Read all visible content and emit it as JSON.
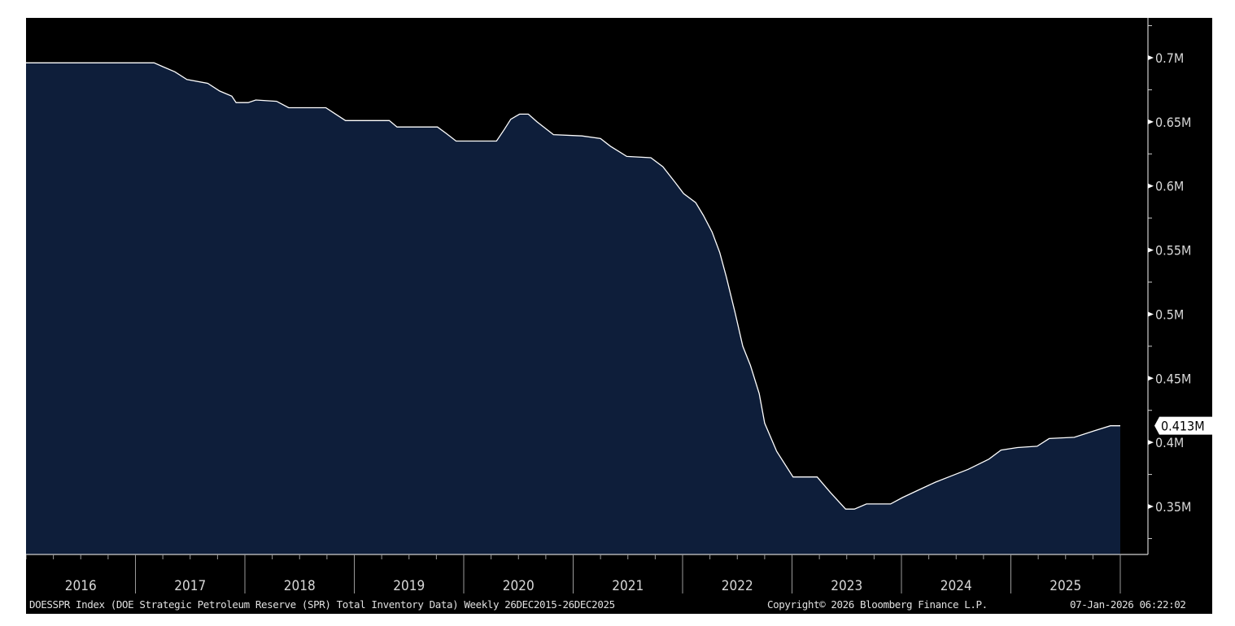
{
  "chart_data": {
    "type": "area",
    "title": "DOESSPR Index (DOE Strategic Petroleum Reserve (SPR) Total Inventory Data) Weekly 26DEC2015-26DEC2025",
    "xlabel": "",
    "ylabel": "",
    "x_tick_labels": [
      "2016",
      "2017",
      "2018",
      "2019",
      "2020",
      "2021",
      "2022",
      "2023",
      "2024",
      "2025"
    ],
    "y_tick_labels": [
      "0.7M",
      "0.65M",
      "0.6M",
      "0.55M",
      "0.5M",
      "0.45M",
      "0.4M",
      "0.35M"
    ],
    "y_ticks": [
      0.7,
      0.65,
      0.6,
      0.55,
      0.5,
      0.45,
      0.4,
      0.35
    ],
    "xlim": [
      2016.0,
      2026.25
    ],
    "ylim": [
      0.3125,
      0.731
    ],
    "grid": false,
    "last_value_label": "0.413M",
    "last_value": 0.413,
    "series": [
      {
        "name": "DOESSPR Index",
        "color": "#ffffff",
        "fill": "#0e1e3a",
        "x": [
          2016.0,
          2017.17,
          2017.25,
          2017.36,
          2017.47,
          2017.66,
          2017.77,
          2017.88,
          2017.92,
          2018.03,
          2018.1,
          2018.29,
          2018.4,
          2018.74,
          2018.83,
          2018.92,
          2019.32,
          2019.39,
          2019.76,
          2019.84,
          2019.93,
          2020.3,
          2020.37,
          2020.43,
          2020.51,
          2020.59,
          2020.67,
          2020.82,
          2021.08,
          2021.25,
          2021.34,
          2021.49,
          2021.71,
          2021.82,
          2021.93,
          2022.01,
          2022.12,
          2022.19,
          2022.27,
          2022.34,
          2022.4,
          2022.48,
          2022.55,
          2022.62,
          2022.7,
          2022.75,
          2022.86,
          2023.01,
          2023.23,
          2023.35,
          2023.49,
          2023.57,
          2023.68,
          2023.9,
          2024.01,
          2024.16,
          2024.31,
          2024.46,
          2024.61,
          2024.8,
          2024.91,
          2025.06,
          2025.24,
          2025.35,
          2025.58,
          2025.76,
          2025.91,
          2026.0
        ],
        "y": [
          0.696,
          0.696,
          0.693,
          0.689,
          0.683,
          0.68,
          0.674,
          0.67,
          0.665,
          0.665,
          0.667,
          0.666,
          0.661,
          0.661,
          0.656,
          0.651,
          0.651,
          0.646,
          0.646,
          0.641,
          0.635,
          0.635,
          0.644,
          0.652,
          0.656,
          0.656,
          0.65,
          0.64,
          0.639,
          0.637,
          0.631,
          0.623,
          0.622,
          0.615,
          0.603,
          0.594,
          0.587,
          0.577,
          0.564,
          0.548,
          0.529,
          0.501,
          0.475,
          0.46,
          0.438,
          0.415,
          0.393,
          0.373,
          0.373,
          0.361,
          0.348,
          0.348,
          0.352,
          0.352,
          0.357,
          0.363,
          0.369,
          0.374,
          0.379,
          0.387,
          0.394,
          0.396,
          0.397,
          0.403,
          0.404,
          0.409,
          0.413,
          0.413
        ]
      }
    ]
  },
  "footer": {
    "description": "DOESSPR Index (DOE Strategic Petroleum Reserve (SPR) Total Inventory Data) Weekly 26DEC2015-26DEC2025",
    "copyright": "Copyright© 2026 Bloomberg Finance L.P.",
    "timestamp": "07-Jan-2026 06:22:02"
  }
}
